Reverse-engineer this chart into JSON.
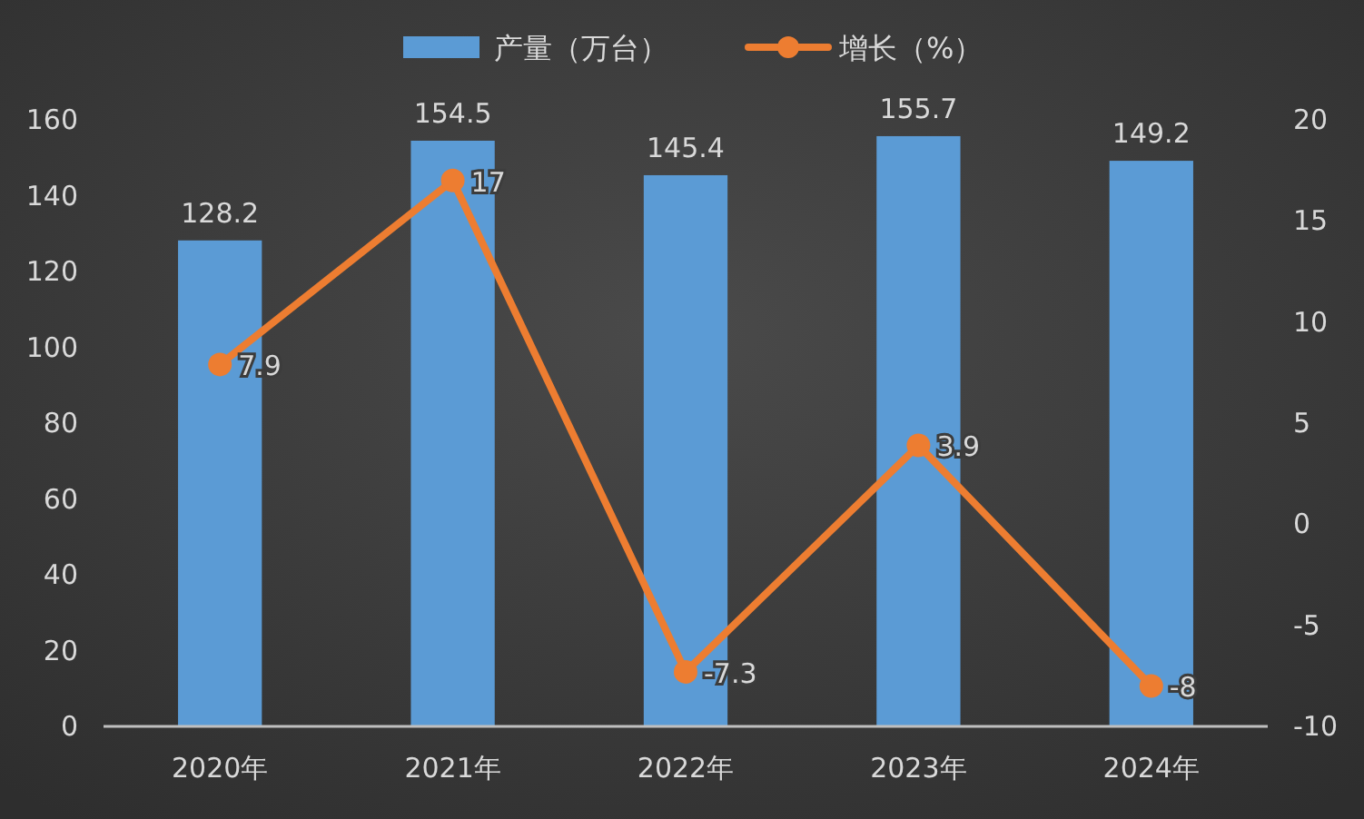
{
  "chart_data": {
    "type": "bar",
    "categories": [
      "2020年",
      "2021年",
      "2022年",
      "2023年",
      "2024年"
    ],
    "series": [
      {
        "name": "产量（万台）",
        "color": "#5b9bd5",
        "values": [
          128.2,
          154.5,
          145.4,
          155.7,
          149.2
        ]
      },
      {
        "name": "增长（%）",
        "type": "line",
        "axis": "y2",
        "color": "#ed7d31",
        "values": [
          7.9,
          17,
          -7.3,
          3.9,
          -8
        ]
      }
    ],
    "ylim": [
      0,
      160
    ],
    "yticks": [
      0,
      20,
      40,
      60,
      80,
      100,
      120,
      140,
      160
    ],
    "y2lim": [
      -10,
      20
    ],
    "y2ticks": [
      -10,
      -5,
      0,
      5,
      10,
      15,
      20
    ],
    "data_labels": true,
    "legend": "top",
    "marker": "circle",
    "grid": false
  }
}
